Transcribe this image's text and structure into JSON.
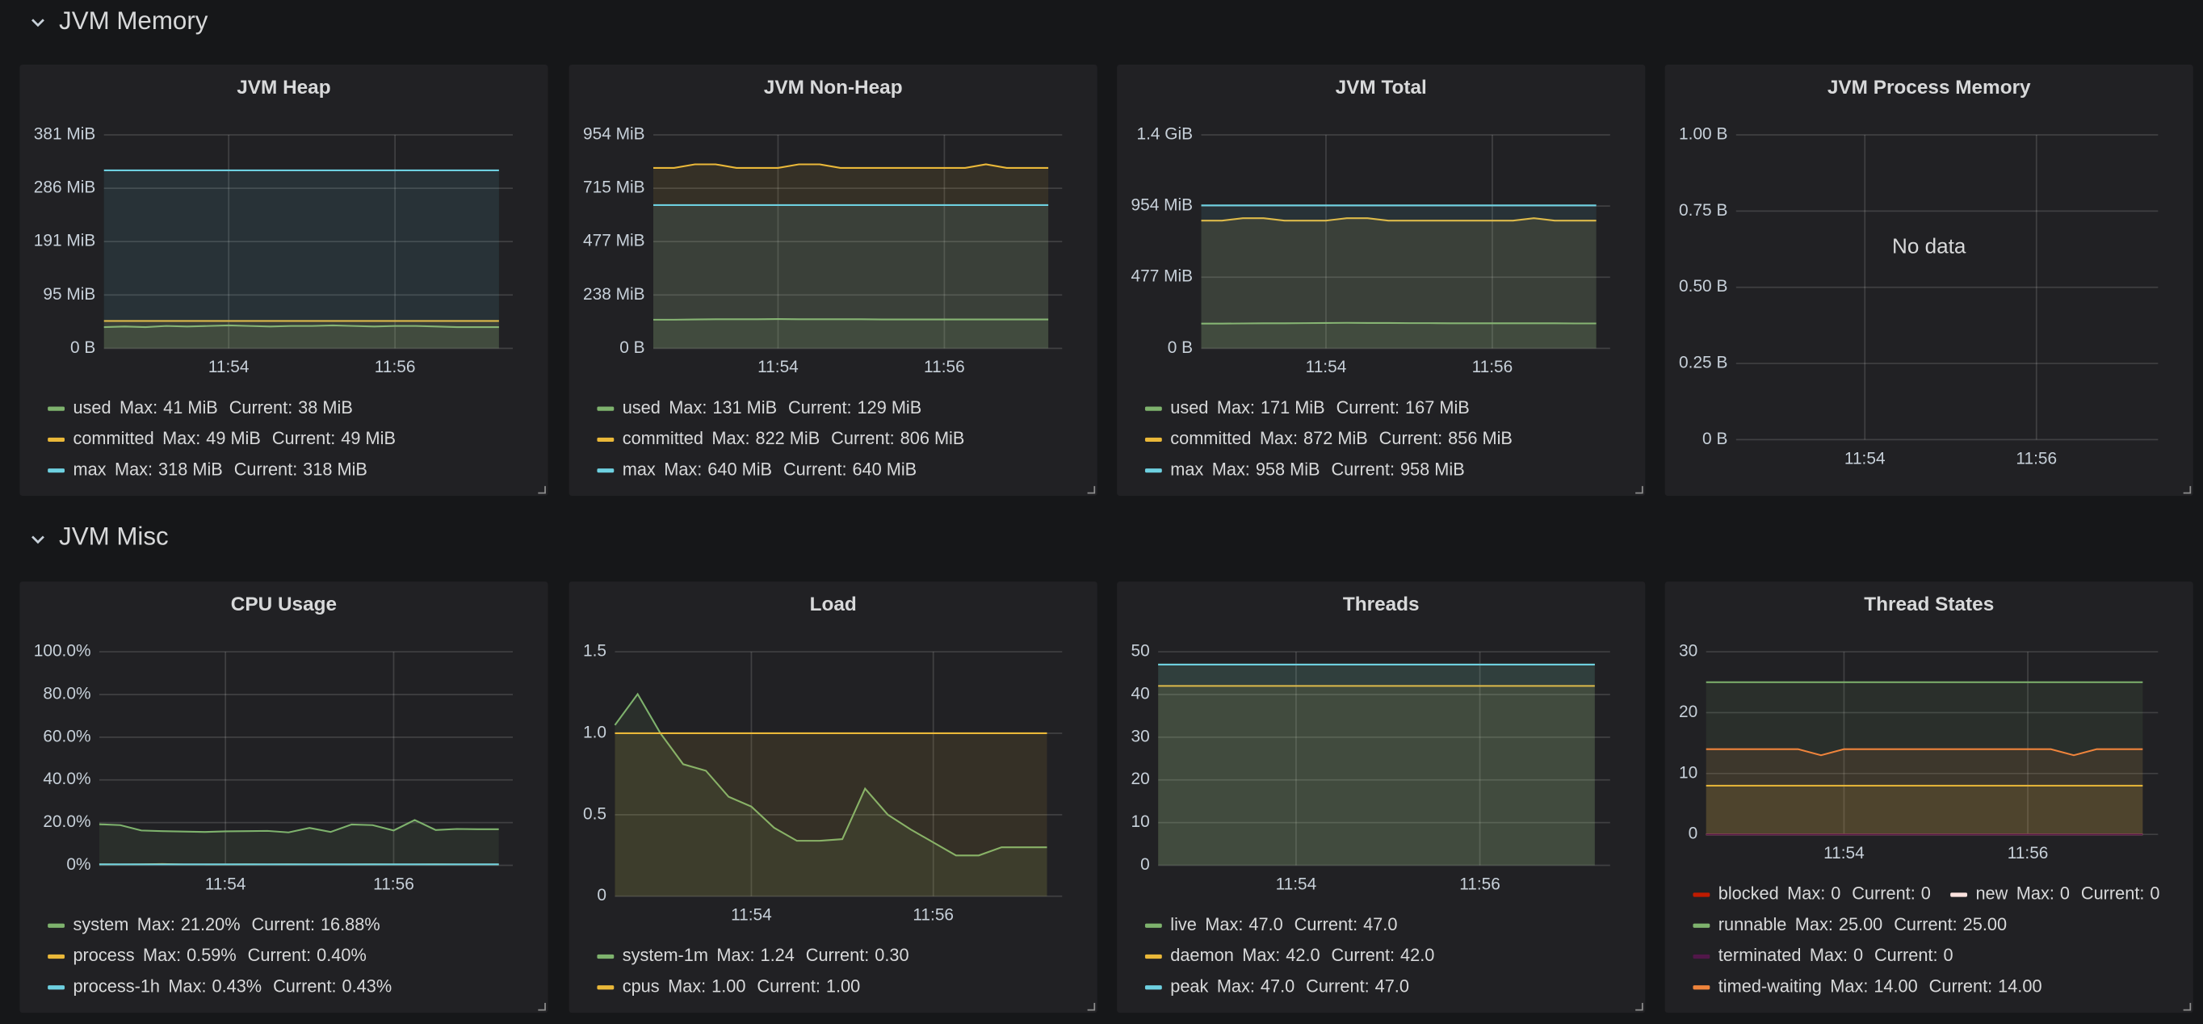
{
  "sections": [
    "JVM Memory",
    "JVM Misc"
  ],
  "legend_stat_labels": {
    "max": "Max:",
    "current": "Current:"
  },
  "chart_data": [
    {
      "type": "line",
      "title": "JVM Heap",
      "x": [
        "11:52:30",
        "11:52:45",
        "11:53:00",
        "11:53:15",
        "11:53:30",
        "11:53:45",
        "11:54:00",
        "11:54:15",
        "11:54:30",
        "11:54:45",
        "11:55:00",
        "11:55:15",
        "11:55:30",
        "11:55:45",
        "11:56:00",
        "11:56:15",
        "11:56:30",
        "11:56:45",
        "11:57:00",
        "11:57:15"
      ],
      "xlim": [
        "11:52:30",
        "11:57:25"
      ],
      "xticks": [
        "11:54",
        "11:56"
      ],
      "ylim": [
        0,
        381.47
      ],
      "yticks": [
        {
          "value": 0,
          "label": "0 B"
        },
        {
          "value": 95.37,
          "label": "95 MiB"
        },
        {
          "value": 190.73,
          "label": "191 MiB"
        },
        {
          "value": 286.1,
          "label": "286 MiB"
        },
        {
          "value": 381.47,
          "label": "381 MiB"
        }
      ],
      "grid": true,
      "series": [
        {
          "name": "used",
          "color": "#7eb26d",
          "max": "41 MiB",
          "current": "38 MiB",
          "values": [
            38,
            39,
            38,
            40,
            39,
            40,
            41,
            40,
            39,
            40,
            40,
            41,
            40,
            39,
            40,
            40,
            39,
            38,
            38,
            38
          ]
        },
        {
          "name": "committed",
          "color": "#eab839",
          "max": "49 MiB",
          "current": "49 MiB",
          "values": [
            49,
            49,
            49,
            49,
            49,
            49,
            49,
            49,
            49,
            49,
            49,
            49,
            49,
            49,
            49,
            49,
            49,
            49,
            49,
            49
          ]
        },
        {
          "name": "max",
          "color": "#6ed0e0",
          "max": "318 MiB",
          "current": "318 MiB",
          "values": [
            318,
            318,
            318,
            318,
            318,
            318,
            318,
            318,
            318,
            318,
            318,
            318,
            318,
            318,
            318,
            318,
            318,
            318,
            318,
            318
          ]
        }
      ]
    },
    {
      "type": "line",
      "title": "JVM Non-Heap",
      "x": [
        "11:52:30",
        "11:52:45",
        "11:53:00",
        "11:53:15",
        "11:53:30",
        "11:53:45",
        "11:54:00",
        "11:54:15",
        "11:54:30",
        "11:54:45",
        "11:55:00",
        "11:55:15",
        "11:55:30",
        "11:55:45",
        "11:56:00",
        "11:56:15",
        "11:56:30",
        "11:56:45",
        "11:57:00",
        "11:57:15"
      ],
      "xlim": [
        "11:52:30",
        "11:57:25"
      ],
      "xticks": [
        "11:54",
        "11:56"
      ],
      "ylim": [
        0,
        953.67
      ],
      "yticks": [
        {
          "value": 0,
          "label": "0 B"
        },
        {
          "value": 238.42,
          "label": "238 MiB"
        },
        {
          "value": 476.84,
          "label": "477 MiB"
        },
        {
          "value": 715.26,
          "label": "715 MiB"
        },
        {
          "value": 953.67,
          "label": "954 MiB"
        }
      ],
      "grid": true,
      "series": [
        {
          "name": "used",
          "color": "#7eb26d",
          "max": "131 MiB",
          "current": "129 MiB",
          "values": [
            128,
            128,
            129,
            130,
            130,
            130,
            131,
            130,
            130,
            130,
            130,
            129,
            129,
            129,
            129,
            129,
            129,
            129,
            129,
            129
          ]
        },
        {
          "name": "committed",
          "color": "#eab839",
          "max": "822 MiB",
          "current": "806 MiB",
          "values": [
            806,
            806,
            822,
            822,
            806,
            806,
            806,
            822,
            822,
            806,
            806,
            806,
            806,
            806,
            806,
            806,
            822,
            806,
            806,
            806
          ]
        },
        {
          "name": "max",
          "color": "#6ed0e0",
          "max": "640 MiB",
          "current": "640 MiB",
          "values": [
            640,
            640,
            640,
            640,
            640,
            640,
            640,
            640,
            640,
            640,
            640,
            640,
            640,
            640,
            640,
            640,
            640,
            640,
            640,
            640
          ]
        }
      ]
    },
    {
      "type": "line",
      "title": "JVM Total",
      "x": [
        "11:52:30",
        "11:52:45",
        "11:53:00",
        "11:53:15",
        "11:53:30",
        "11:53:45",
        "11:54:00",
        "11:54:15",
        "11:54:30",
        "11:54:45",
        "11:55:00",
        "11:55:15",
        "11:55:30",
        "11:55:45",
        "11:56:00",
        "11:56:15",
        "11:56:30",
        "11:56:45",
        "11:57:00",
        "11:57:15"
      ],
      "xlim": [
        "11:52:30",
        "11:57:25"
      ],
      "xticks": [
        "11:54",
        "11:56"
      ],
      "ylim": [
        0,
        1430.51
      ],
      "yticks": [
        {
          "value": 0,
          "label": "0 B"
        },
        {
          "value": 476.84,
          "label": "477 MiB"
        },
        {
          "value": 953.67,
          "label": "954 MiB"
        },
        {
          "value": 1430.51,
          "label": "1.4 GiB"
        }
      ],
      "grid": true,
      "series": [
        {
          "name": "used",
          "color": "#7eb26d",
          "max": "171 MiB",
          "current": "167 MiB",
          "values": [
            166,
            166,
            167,
            168,
            168,
            169,
            170,
            171,
            170,
            170,
            169,
            169,
            168,
            168,
            168,
            168,
            168,
            168,
            167,
            167
          ]
        },
        {
          "name": "committed",
          "color": "#eab839",
          "max": "872 MiB",
          "current": "856 MiB",
          "values": [
            856,
            856,
            872,
            872,
            856,
            856,
            856,
            872,
            872,
            856,
            856,
            856,
            856,
            856,
            856,
            856,
            872,
            856,
            856,
            856
          ]
        },
        {
          "name": "max",
          "color": "#6ed0e0",
          "max": "958 MiB",
          "current": "958 MiB",
          "values": [
            958,
            958,
            958,
            958,
            958,
            958,
            958,
            958,
            958,
            958,
            958,
            958,
            958,
            958,
            958,
            958,
            958,
            958,
            958,
            958
          ]
        }
      ]
    },
    {
      "type": "line",
      "title": "JVM Process Memory",
      "no_data": "No data",
      "xlim": [
        "11:52:30",
        "11:57:25"
      ],
      "xticks": [
        "11:54",
        "11:56"
      ],
      "ylim": [
        0,
        1
      ],
      "yticks": [
        {
          "value": 0,
          "label": "0 B"
        },
        {
          "value": 0.25,
          "label": "0.25 B"
        },
        {
          "value": 0.5,
          "label": "0.50 B"
        },
        {
          "value": 0.75,
          "label": "0.75 B"
        },
        {
          "value": 1,
          "label": "1.00 B"
        }
      ],
      "grid": true,
      "series": []
    },
    {
      "type": "line",
      "title": "CPU Usage",
      "x": [
        "11:52:30",
        "11:52:45",
        "11:53:00",
        "11:53:15",
        "11:53:30",
        "11:53:45",
        "11:54:00",
        "11:54:15",
        "11:54:30",
        "11:54:45",
        "11:55:00",
        "11:55:15",
        "11:55:30",
        "11:55:45",
        "11:56:00",
        "11:56:15",
        "11:56:30",
        "11:56:45",
        "11:57:00",
        "11:57:15"
      ],
      "xlim": [
        "11:52:30",
        "11:57:25"
      ],
      "xticks": [
        "11:54",
        "11:56"
      ],
      "ylim": [
        0,
        100
      ],
      "yticks": [
        {
          "value": 0,
          "label": "0%"
        },
        {
          "value": 20,
          "label": "20.0%"
        },
        {
          "value": 40,
          "label": "40.0%"
        },
        {
          "value": 60,
          "label": "60.0%"
        },
        {
          "value": 80,
          "label": "80.0%"
        },
        {
          "value": 100,
          "label": "100.0%"
        }
      ],
      "grid": true,
      "series": [
        {
          "name": "system",
          "color": "#7eb26d",
          "max": "21.20%",
          "current": "16.88%",
          "values": [
            19.2,
            18.8,
            16.3,
            16.0,
            15.8,
            15.6,
            15.9,
            16.0,
            16.1,
            15.4,
            17.5,
            15.6,
            19.1,
            18.8,
            16.3,
            21.2,
            16.5,
            17.0,
            16.9,
            16.88
          ]
        },
        {
          "name": "process",
          "color": "#eab839",
          "max": "0.59%",
          "current": "0.40%",
          "values": [
            0.42,
            0.4,
            0.45,
            0.59,
            0.41,
            0.4,
            0.38,
            0.42,
            0.4,
            0.44,
            0.41,
            0.4,
            0.39,
            0.42,
            0.4,
            0.41,
            0.43,
            0.4,
            0.41,
            0.4
          ]
        },
        {
          "name": "process-1h",
          "color": "#6ed0e0",
          "max": "0.43%",
          "current": "0.43%",
          "values": [
            0.43,
            0.43,
            0.43,
            0.43,
            0.43,
            0.43,
            0.43,
            0.43,
            0.43,
            0.43,
            0.43,
            0.43,
            0.43,
            0.43,
            0.43,
            0.43,
            0.43,
            0.43,
            0.43,
            0.43
          ]
        }
      ]
    },
    {
      "type": "line",
      "title": "Load",
      "x": [
        "11:52:30",
        "11:52:45",
        "11:53:00",
        "11:53:15",
        "11:53:30",
        "11:53:45",
        "11:54:00",
        "11:54:15",
        "11:54:30",
        "11:54:45",
        "11:55:00",
        "11:55:15",
        "11:55:30",
        "11:55:45",
        "11:56:00",
        "11:56:15",
        "11:56:30",
        "11:56:45",
        "11:57:00",
        "11:57:15"
      ],
      "xlim": [
        "11:52:30",
        "11:57:25"
      ],
      "xticks": [
        "11:54",
        "11:56"
      ],
      "ylim": [
        0,
        1.5
      ],
      "yticks": [
        0,
        0.5,
        {
          "value": 1,
          "label": "1.0"
        },
        1.5
      ],
      "grid": true,
      "series": [
        {
          "name": "system-1m",
          "color": "#7eb26d",
          "max": "1.24",
          "current": "0.30",
          "values": [
            1.05,
            1.24,
            1.0,
            0.81,
            0.77,
            0.61,
            0.55,
            0.42,
            0.34,
            0.34,
            0.35,
            0.66,
            0.5,
            0.41,
            0.33,
            0.25,
            0.25,
            0.3,
            0.3,
            0.3
          ]
        },
        {
          "name": "cpus",
          "color": "#eab839",
          "max": "1.00",
          "current": "1.00",
          "values": [
            1,
            1,
            1,
            1,
            1,
            1,
            1,
            1,
            1,
            1,
            1,
            1,
            1,
            1,
            1,
            1,
            1,
            1,
            1,
            1
          ]
        }
      ]
    },
    {
      "type": "line",
      "title": "Threads",
      "x": [
        "11:52:30",
        "11:52:45",
        "11:53:00",
        "11:53:15",
        "11:53:30",
        "11:53:45",
        "11:54:00",
        "11:54:15",
        "11:54:30",
        "11:54:45",
        "11:55:00",
        "11:55:15",
        "11:55:30",
        "11:55:45",
        "11:56:00",
        "11:56:15",
        "11:56:30",
        "11:56:45",
        "11:57:00",
        "11:57:15"
      ],
      "xlim": [
        "11:52:30",
        "11:57:25"
      ],
      "xticks": [
        "11:54",
        "11:56"
      ],
      "ylim": [
        0,
        50
      ],
      "yticks": [
        0,
        10,
        20,
        30,
        40,
        50
      ],
      "grid": true,
      "series": [
        {
          "name": "live",
          "color": "#7eb26d",
          "max": "47.0",
          "current": "47.0",
          "values": [
            47,
            47,
            47,
            47,
            47,
            47,
            47,
            47,
            47,
            47,
            47,
            47,
            47,
            47,
            47,
            47,
            47,
            47,
            47,
            47
          ]
        },
        {
          "name": "daemon",
          "color": "#eab839",
          "max": "42.0",
          "current": "42.0",
          "values": [
            42,
            42,
            42,
            42,
            42,
            42,
            42,
            42,
            42,
            42,
            42,
            42,
            42,
            42,
            42,
            42,
            42,
            42,
            42,
            42
          ]
        },
        {
          "name": "peak",
          "color": "#6ed0e0",
          "max": "47.0",
          "current": "47.0",
          "values": [
            47,
            47,
            47,
            47,
            47,
            47,
            47,
            47,
            47,
            47,
            47,
            47,
            47,
            47,
            47,
            47,
            47,
            47,
            47,
            47
          ]
        }
      ]
    },
    {
      "type": "line",
      "title": "Thread States",
      "x": [
        "11:52:30",
        "11:52:45",
        "11:53:00",
        "11:53:15",
        "11:53:30",
        "11:53:45",
        "11:54:00",
        "11:54:15",
        "11:54:30",
        "11:54:45",
        "11:55:00",
        "11:55:15",
        "11:55:30",
        "11:55:45",
        "11:56:00",
        "11:56:15",
        "11:56:30",
        "11:56:45",
        "11:57:00",
        "11:57:15"
      ],
      "xlim": [
        "11:52:30",
        "11:57:25"
      ],
      "xticks": [
        "11:54",
        "11:56"
      ],
      "ylim": [
        0,
        30
      ],
      "yticks": [
        0,
        10,
        20,
        30
      ],
      "grid": true,
      "series": [
        {
          "name": "blocked",
          "color": "#bf1b00",
          "max": "0",
          "current": "0",
          "values": [
            0,
            0,
            0,
            0,
            0,
            0,
            0,
            0,
            0,
            0,
            0,
            0,
            0,
            0,
            0,
            0,
            0,
            0,
            0,
            0
          ]
        },
        {
          "name": "new",
          "color": "#fce2de",
          "max": "0",
          "current": "0",
          "values": [
            0,
            0,
            0,
            0,
            0,
            0,
            0,
            0,
            0,
            0,
            0,
            0,
            0,
            0,
            0,
            0,
            0,
            0,
            0,
            0
          ]
        },
        {
          "name": "runnable",
          "color": "#7eb26d",
          "max": "25.00",
          "current": "25.00",
          "values": [
            25,
            25,
            25,
            25,
            25,
            25,
            25,
            25,
            25,
            25,
            25,
            25,
            25,
            25,
            25,
            25,
            25,
            25,
            25,
            25
          ]
        },
        {
          "name": "terminated",
          "color": "#511749",
          "max": "0",
          "current": "0",
          "values": [
            0,
            0,
            0,
            0,
            0,
            0,
            0,
            0,
            0,
            0,
            0,
            0,
            0,
            0,
            0,
            0,
            0,
            0,
            0,
            0
          ]
        },
        {
          "name": "timed-waiting",
          "color": "#ef843c",
          "max": "14.00",
          "current": "14.00",
          "values": [
            14,
            14,
            14,
            14,
            14,
            13,
            14,
            14,
            14,
            14,
            14,
            14,
            14,
            14,
            14,
            14,
            13,
            14,
            14,
            14
          ]
        },
        {
          "color": "#eab839",
          "values": [
            8,
            8,
            8,
            8,
            8,
            8,
            8,
            8,
            8,
            8,
            8,
            8,
            8,
            8,
            8,
            8,
            8,
            8,
            8,
            8
          ]
        }
      ]
    }
  ]
}
